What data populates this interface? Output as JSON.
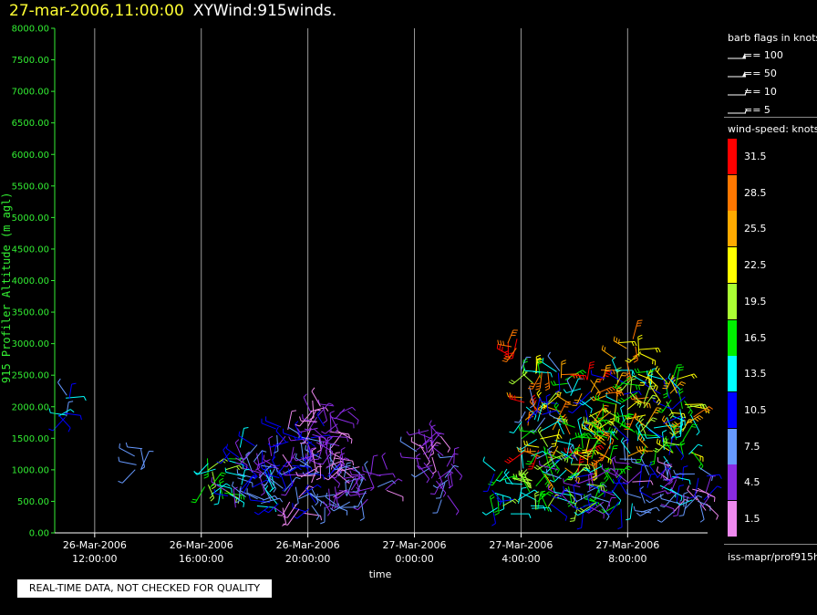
{
  "header": {
    "timestamp": "27-mar-2006,11:00:00",
    "product": "XYWind:915winds."
  },
  "notice": "REAL-TIME DATA, NOT CHECKED FOR QUALITY",
  "legend": {
    "barb_title": "barb flags in knots",
    "barb_items": [
      "== 100",
      "== 50",
      "== 10",
      "== 5"
    ],
    "speed_title": "wind-speed: knots",
    "speed_scale": [
      {
        "label": "31.5",
        "color": "#ff0000"
      },
      {
        "label": "28.5",
        "color": "#ff7700"
      },
      {
        "label": "25.5",
        "color": "#ffaa00"
      },
      {
        "label": "22.5",
        "color": "#ffff00"
      },
      {
        "label": "19.5",
        "color": "#aaff33"
      },
      {
        "label": "16.5",
        "color": "#00ee00"
      },
      {
        "label": "13.5",
        "color": "#00ffff"
      },
      {
        "label": "10.5",
        "color": "#0000ff"
      },
      {
        "label": "7.5",
        "color": "#6699ff"
      },
      {
        "label": "4.5",
        "color": "#8a2be2"
      },
      {
        "label": "1.5",
        "color": "#ee88ee"
      }
    ],
    "source": "iss-mapr/prof915h"
  },
  "chart_data": {
    "type": "scatter",
    "title": "27-mar-2006,11:00:00  XYWind:915winds.",
    "xlabel": "time",
    "ylabel": "915 Profiler Altitude (m agl)",
    "x_range": [
      "26-Mar-2006 10:30",
      "27-Mar-2006 11:00"
    ],
    "ylim": [
      0,
      8000
    ],
    "yticks": [
      "0.00",
      "500.00",
      "1000.00",
      "1500.00",
      "2000.00",
      "2500.00",
      "3000.00",
      "3500.00",
      "4000.00",
      "4500.00",
      "5000.00",
      "5500.00",
      "6000.00",
      "6500.00",
      "7000.00",
      "7500.00",
      "8000.00"
    ],
    "xticks": [
      {
        "date": "26-Mar-2006",
        "time": "12:00:00",
        "hour": 1.5
      },
      {
        "date": "26-Mar-2006",
        "time": "16:00:00",
        "hour": 5.5
      },
      {
        "date": "26-Mar-2006",
        "time": "20:00:00",
        "hour": 9.5
      },
      {
        "date": "27-Mar-2006",
        "time": "0:00:00",
        "hour": 13.5
      },
      {
        "date": "27-Mar-2006",
        "time": "4:00:00",
        "hour": 17.5
      },
      {
        "date": "27-Mar-2006",
        "time": "8:00:00",
        "hour": 21.5
      }
    ],
    "grid": "vertical lines at each x tick",
    "series_note": "wind barbs colored by wind speed (knots)",
    "clusters": [
      {
        "hour_start": 0.1,
        "hour_end": 0.7,
        "alt_min": 1700,
        "alt_max": 2300,
        "speed": [
          8,
          14
        ]
      },
      {
        "hour_start": 3.0,
        "hour_end": 3.3,
        "alt_min": 1000,
        "alt_max": 1350,
        "speed": [
          6,
          9
        ]
      },
      {
        "hour_start": 5.6,
        "hour_end": 6.6,
        "alt_min": 500,
        "alt_max": 1200,
        "speed": [
          12,
          20
        ]
      },
      {
        "hour_start": 6.4,
        "hour_end": 8.5,
        "alt_min": 400,
        "alt_max": 1400,
        "speed": [
          4,
          14
        ]
      },
      {
        "hour_start": 8.3,
        "hour_end": 10.5,
        "alt_min": 300,
        "alt_max": 1700,
        "speed": [
          1,
          12
        ]
      },
      {
        "hour_start": 9.5,
        "hour_end": 11.0,
        "alt_min": 900,
        "alt_max": 2100,
        "speed": [
          1,
          6
        ]
      },
      {
        "hour_start": 10.5,
        "hour_end": 12.5,
        "alt_min": 400,
        "alt_max": 1100,
        "speed": [
          2,
          8
        ]
      },
      {
        "hour_start": 13.4,
        "hour_end": 15.0,
        "alt_min": 1000,
        "alt_max": 1700,
        "speed": [
          2,
          7
        ]
      },
      {
        "hour_start": 14.2,
        "hour_end": 15.0,
        "alt_min": 500,
        "alt_max": 1000,
        "speed": [
          3,
          8
        ]
      },
      {
        "hour_start": 16.4,
        "hour_end": 18.2,
        "alt_min": 300,
        "alt_max": 1000,
        "speed": [
          10,
          20
        ]
      },
      {
        "hour_start": 17.5,
        "hour_end": 20.5,
        "alt_min": 900,
        "alt_max": 2600,
        "speed": [
          8,
          32
        ]
      },
      {
        "hour_start": 18.5,
        "hour_end": 21.5,
        "alt_min": 300,
        "alt_max": 1200,
        "speed": [
          4,
          20
        ]
      },
      {
        "hour_start": 20.5,
        "hour_end": 24.0,
        "alt_min": 1200,
        "alt_max": 2600,
        "speed": [
          10,
          28
        ]
      },
      {
        "hour_start": 21.5,
        "hour_end": 24.5,
        "alt_min": 300,
        "alt_max": 1100,
        "speed": [
          2,
          14
        ]
      },
      {
        "hour_start": 17.0,
        "hour_end": 17.4,
        "alt_min": 2800,
        "alt_max": 3100,
        "speed": [
          28,
          32
        ]
      },
      {
        "hour_start": 21.0,
        "hour_end": 22.0,
        "alt_min": 2700,
        "alt_max": 3100,
        "speed": [
          22,
          30
        ]
      }
    ]
  }
}
